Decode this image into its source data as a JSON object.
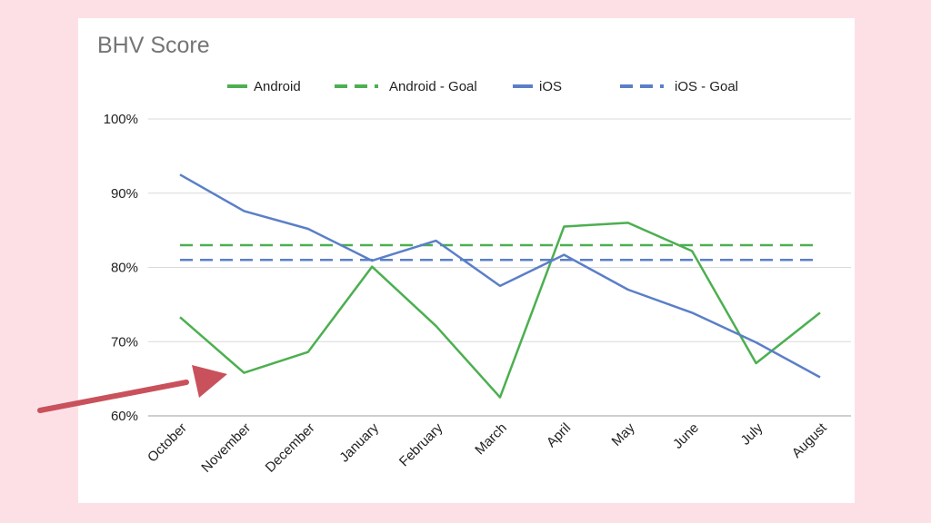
{
  "chart_data": {
    "type": "line",
    "title": "BHV Score",
    "xlabel": "",
    "ylabel": "",
    "categories": [
      "October",
      "November",
      "December",
      "January",
      "February",
      "March",
      "April",
      "May",
      "June",
      "July",
      "August"
    ],
    "y_ticks": [
      "100%",
      "90%",
      "80%",
      "70%",
      "60%"
    ],
    "ylim": [
      60,
      100
    ],
    "grid": true,
    "legend_position": "top",
    "series": [
      {
        "name": "Android",
        "style": "solid",
        "color": "#4caf50",
        "values": [
          73.3,
          65.8,
          68.6,
          80.1,
          72.1,
          62.5,
          85.5,
          86.0,
          82.2,
          67.1,
          73.9
        ]
      },
      {
        "name": "Android - Goal",
        "style": "dashed",
        "color": "#4caf50",
        "values": [
          83,
          83,
          83,
          83,
          83,
          83,
          83,
          83,
          83,
          83,
          83
        ]
      },
      {
        "name": "iOS",
        "style": "solid",
        "color": "#5b7fc7",
        "values": [
          92.5,
          87.6,
          85.2,
          80.9,
          83.6,
          77.5,
          81.7,
          77.0,
          73.9,
          69.9,
          65.2
        ]
      },
      {
        "name": "iOS - Goal",
        "style": "dashed",
        "color": "#5b7fc7",
        "values": [
          81,
          81,
          81,
          81,
          81,
          81,
          81,
          81,
          81,
          81,
          81
        ]
      }
    ],
    "annotation": {
      "type": "arrow",
      "color": "#c9515b",
      "points_to": "November"
    }
  }
}
